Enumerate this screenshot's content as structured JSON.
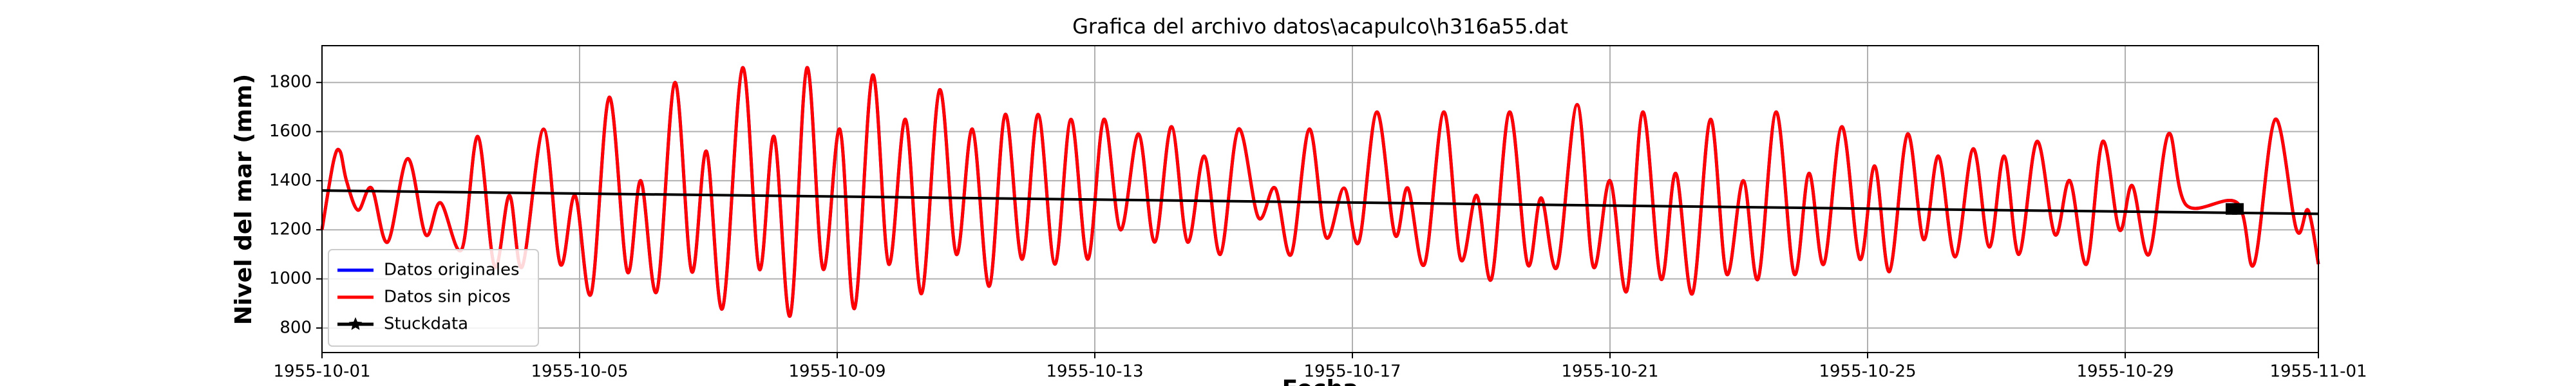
{
  "chart_data": {
    "type": "line",
    "title": "Grafica del archivo datos\\acapulco\\h316a55.dat",
    "xlabel": "Fecha",
    "ylabel": "Nivel del mar (mm)",
    "x": [
      0,
      0.18,
      0.28,
      0.38,
      0.56,
      0.77,
      1.02,
      1.33,
      1.61,
      1.84,
      2.17,
      2.42,
      2.68,
      2.91,
      3.11,
      3.44,
      3.7,
      3.93,
      4.18,
      4.46,
      4.74,
      4.95,
      5.2,
      5.48,
      5.74,
      5.97,
      6.22,
      6.53,
      6.79,
      7.02,
      7.27,
      7.53,
      7.78,
      8.04,
      8.27,
      8.55,
      8.8,
      9.06,
      9.31,
      9.59,
      9.85,
      10.1,
      10.36,
      10.61,
      10.87,
      11.12,
      11.38,
      11.63,
      11.89,
      12.14,
      12.4,
      12.68,
      12.93,
      13.19,
      13.44,
      13.7,
      13.95,
      14.23,
      14.54,
      14.8,
      15.05,
      15.33,
      15.59,
      15.87,
      16.1,
      16.38,
      16.66,
      16.86,
      17.12,
      17.42,
      17.68,
      17.93,
      18.16,
      18.44,
      18.72,
      18.93,
      19.18,
      19.49,
      19.74,
      20.0,
      20.26,
      20.51,
      20.79,
      21.02,
      21.28,
      21.56,
      21.81,
      22.07,
      22.3,
      22.58,
      22.86,
      23.09,
      23.32,
      23.6,
      23.88,
      24.11,
      24.34,
      24.62,
      24.87,
      25.1,
      25.36,
      25.64,
      25.89,
      26.12,
      26.35,
      26.63,
      26.91,
      27.14,
      27.4,
      27.65,
      27.91,
      28.11,
      28.37,
      28.67,
      28.95,
      29.74,
      30.0,
      30.33,
      30.66,
      30.84,
      31.0
    ],
    "series": [
      {
        "name": "Datos originales",
        "color": "#0000ff",
        "values": [
          1200,
          1480,
          1520,
          1400,
          1280,
          1370,
          1150,
          1490,
          1180,
          1310,
          1120,
          1580,
          1050,
          1340,
          1050,
          1610,
          1060,
          1340,
          940,
          1740,
          1030,
          1400,
          950,
          1800,
          1030,
          1520,
          880,
          1860,
          1040,
          1580,
          850,
          1860,
          1040,
          1610,
          880,
          1830,
          1060,
          1650,
          940,
          1770,
          1100,
          1610,
          970,
          1670,
          1080,
          1670,
          1060,
          1650,
          1080,
          1650,
          1200,
          1590,
          1150,
          1620,
          1150,
          1500,
          1100,
          1610,
          1250,
          1370,
          1100,
          1610,
          1170,
          1370,
          1150,
          1680,
          1180,
          1370,
          1060,
          1680,
          1080,
          1340,
          1000,
          1680,
          1060,
          1330,
          1050,
          1710,
          1050,
          1400,
          950,
          1680,
          1000,
          1430,
          940,
          1650,
          1020,
          1400,
          1000,
          1680,
          1020,
          1430,
          1060,
          1620,
          1080,
          1460,
          1030,
          1590,
          1160,
          1500,
          1090,
          1530,
          1130,
          1500,
          1100,
          1560,
          1180,
          1400,
          1060,
          1560,
          1200,
          1380,
          1100,
          1590,
          1300,
          1310,
          1060,
          1650,
          1200,
          1280,
          1060
        ]
      },
      {
        "name": "Datos sin picos",
        "color": "#ff0000",
        "values": [
          1200,
          1480,
          1520,
          1400,
          1280,
          1370,
          1150,
          1490,
          1180,
          1310,
          1120,
          1580,
          1050,
          1340,
          1050,
          1610,
          1060,
          1340,
          940,
          1740,
          1030,
          1400,
          950,
          1800,
          1030,
          1520,
          880,
          1860,
          1040,
          1580,
          850,
          1860,
          1040,
          1610,
          880,
          1830,
          1060,
          1650,
          940,
          1770,
          1100,
          1610,
          970,
          1670,
          1080,
          1670,
          1060,
          1650,
          1080,
          1650,
          1200,
          1590,
          1150,
          1620,
          1150,
          1500,
          1100,
          1610,
          1250,
          1370,
          1100,
          1610,
          1170,
          1370,
          1150,
          1680,
          1180,
          1370,
          1060,
          1680,
          1080,
          1340,
          1000,
          1680,
          1060,
          1330,
          1050,
          1710,
          1050,
          1400,
          950,
          1680,
          1000,
          1430,
          940,
          1650,
          1020,
          1400,
          1000,
          1680,
          1020,
          1430,
          1060,
          1620,
          1080,
          1460,
          1030,
          1590,
          1160,
          1500,
          1090,
          1530,
          1130,
          1500,
          1100,
          1560,
          1180,
          1400,
          1060,
          1560,
          1200,
          1380,
          1100,
          1590,
          1300,
          1310,
          1060,
          1650,
          1200,
          1280,
          1060
        ]
      },
      {
        "name": "Stuckdata",
        "color": "#000000",
        "x": [
          0,
          31
        ],
        "values": [
          1360,
          1265
        ],
        "markers": {
          "x": [
            29.65,
            29.75
          ],
          "values": [
            1285,
            1285
          ]
        }
      }
    ],
    "xlim": [
      0,
      31
    ],
    "xticks": [
      {
        "value": 0,
        "label": "1955-10-01"
      },
      {
        "value": 4,
        "label": "1955-10-05"
      },
      {
        "value": 8,
        "label": "1955-10-09"
      },
      {
        "value": 12,
        "label": "1955-10-13"
      },
      {
        "value": 16,
        "label": "1955-10-17"
      },
      {
        "value": 20,
        "label": "1955-10-21"
      },
      {
        "value": 24,
        "label": "1955-10-25"
      },
      {
        "value": 28,
        "label": "1955-10-29"
      },
      {
        "value": 31,
        "label": "1955-11-01"
      }
    ],
    "ylim": [
      700,
      1950
    ],
    "yticks": [
      800,
      1000,
      1200,
      1400,
      1600,
      1800
    ],
    "grid": true,
    "legend": "lower left"
  }
}
